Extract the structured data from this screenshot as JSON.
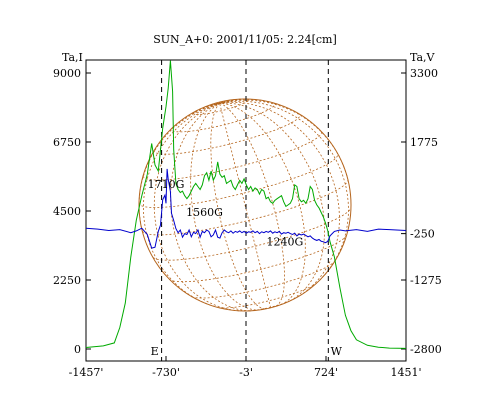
{
  "chart_data": {
    "type": "line",
    "title": "SUN_A+0: 2001/11/05: 2.24[cm]",
    "xlim": [
      -1457,
      1451
    ],
    "x_ticks": [
      "-1457'",
      "-730'",
      "-3'",
      "724'",
      "1451'"
    ],
    "left_axis": {
      "label": "Ta,I",
      "ylim": [
        0,
        9000
      ],
      "ticks": [
        9000,
        6750,
        4500,
        2250,
        0
      ]
    },
    "right_axis": {
      "label": "Ta,V",
      "ylim": [
        -2800,
        3300
      ],
      "ticks": [
        3300,
        1775,
        -250,
        -1275,
        -2800
      ]
    },
    "grid": false,
    "limb_markers": [
      {
        "label": "E",
        "x": -770
      },
      {
        "label": "",
        "x": -3
      },
      {
        "label": "W",
        "x": 745
      }
    ],
    "annotations": [
      {
        "text": "1710G",
        "x": -730,
        "y": 5250
      },
      {
        "text": "1560G",
        "x": -380,
        "y": 4330
      },
      {
        "text": "1240G",
        "x": 350,
        "y": 3370
      }
    ],
    "series": [
      {
        "axis": "left",
        "color": "#00aa00",
        "x": [
          -1457,
          -1300,
          -1200,
          -1150,
          -1100,
          -1050,
          -1000,
          -950,
          -900,
          -860,
          -830,
          -800,
          -760,
          -730,
          -710,
          -690,
          -670,
          -660,
          -640,
          -620,
          -600,
          -580,
          -560,
          -540,
          -520,
          -500,
          -480,
          -460,
          -440,
          -420,
          -400,
          -380,
          -360,
          -340,
          -320,
          -300,
          -280,
          -260,
          -240,
          -220,
          -200,
          -180,
          -160,
          -140,
          -120,
          -100,
          -80,
          -60,
          -40,
          -20,
          0,
          20,
          40,
          60,
          80,
          100,
          120,
          140,
          160,
          180,
          200,
          220,
          240,
          260,
          280,
          300,
          320,
          340,
          360,
          380,
          400,
          420,
          440,
          460,
          480,
          500,
          520,
          540,
          560,
          580,
          600,
          620,
          640,
          660,
          680,
          700,
          720,
          740,
          760,
          800,
          850,
          900,
          950,
          1000,
          1100,
          1200,
          1300,
          1451
        ],
        "y": [
          50,
          100,
          200,
          700,
          1500,
          3000,
          4200,
          5000,
          5700,
          6700,
          6000,
          5800,
          7200,
          7900,
          8500,
          9400,
          8400,
          6500,
          5400,
          5200,
          5100,
          5150,
          5000,
          4900,
          5000,
          5150,
          5300,
          5400,
          5300,
          5200,
          5350,
          5650,
          5750,
          5500,
          5800,
          5500,
          5650,
          6100,
          5700,
          5600,
          5650,
          5400,
          5450,
          5500,
          5300,
          5200,
          5350,
          5500,
          5400,
          5550,
          5350,
          5200,
          5300,
          5150,
          5250,
          5200,
          5050,
          5200,
          5150,
          4900,
          4950,
          4800,
          4750,
          4850,
          4900,
          4950,
          5000,
          4800,
          4650,
          4700,
          4750,
          4900,
          5350,
          5300,
          4900,
          4800,
          4850,
          4750,
          4900,
          5300,
          5200,
          4850,
          4700,
          4600,
          4450,
          4300,
          4100,
          3850,
          3500,
          3000,
          2000,
          1100,
          600,
          300,
          120,
          60,
          30,
          20
        ]
      },
      {
        "axis": "right",
        "color": "#0000cc",
        "x": [
          -1457,
          -1350,
          -1250,
          -1150,
          -1050,
          -1000,
          -950,
          -900,
          -860,
          -830,
          -800,
          -780,
          -760,
          -740,
          -730,
          -720,
          -710,
          -700,
          -690,
          -680,
          -660,
          -640,
          -620,
          -600,
          -580,
          -560,
          -540,
          -520,
          -500,
          -480,
          -460,
          -440,
          -420,
          -400,
          -380,
          -360,
          -340,
          -320,
          -300,
          -280,
          -260,
          -240,
          -220,
          -200,
          -180,
          -160,
          -140,
          -120,
          -100,
          -80,
          -60,
          -40,
          -20,
          0,
          20,
          40,
          60,
          80,
          100,
          120,
          140,
          160,
          180,
          200,
          220,
          240,
          260,
          280,
          300,
          320,
          340,
          360,
          380,
          400,
          420,
          440,
          460,
          480,
          500,
          520,
          540,
          560,
          580,
          600,
          620,
          640,
          660,
          680,
          700,
          720,
          740,
          760,
          780,
          800,
          850,
          900,
          1000,
          1100,
          1200,
          1300,
          1451
        ],
        "y": [
          -130,
          -150,
          -180,
          -160,
          -230,
          -190,
          -130,
          -270,
          -570,
          -550,
          -200,
          -60,
          500,
          600,
          420,
          1180,
          950,
          820,
          680,
          200,
          40,
          -140,
          -230,
          -170,
          -330,
          -250,
          -270,
          -170,
          -320,
          -220,
          -250,
          -170,
          -330,
          -200,
          -230,
          -170,
          -200,
          -320,
          -280,
          -170,
          -330,
          -350,
          -230,
          -170,
          -210,
          -230,
          -190,
          -240,
          -200,
          -220,
          -190,
          -230,
          -200,
          -240,
          -210,
          -220,
          -190,
          -230,
          -200,
          -250,
          -210,
          -230,
          -200,
          -220,
          -190,
          -240,
          -210,
          -230,
          -200,
          -260,
          -230,
          -240,
          -220,
          -250,
          -270,
          -240,
          -300,
          -260,
          -280,
          -260,
          -290,
          -320,
          -300,
          -350,
          -380,
          -400,
          -380,
          -420,
          -430,
          -450,
          -420,
          -300,
          -250,
          -200,
          -170,
          -190,
          -160,
          -200,
          -150,
          -160,
          -180
        ]
      }
    ]
  }
}
